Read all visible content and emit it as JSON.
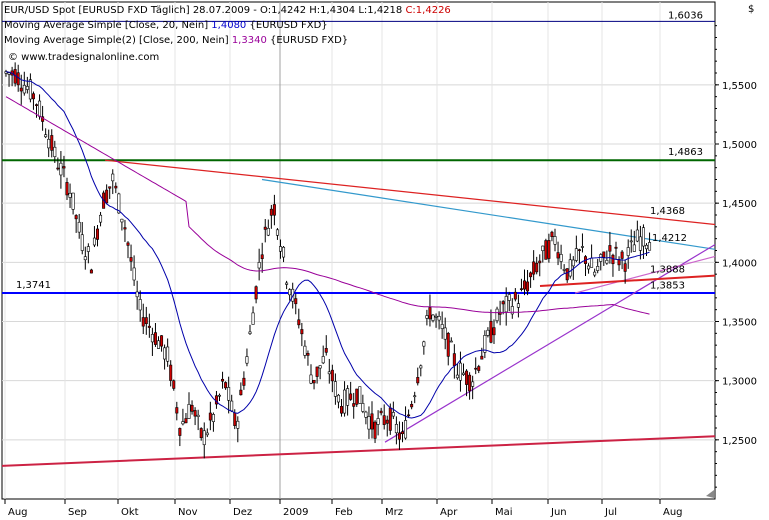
{
  "chart_data": {
    "type": "candlestick",
    "legend": [
      {
        "text": "EUR/USD Spot [EURUSD FXD  Täglich] 28.07.2009 - O:1,4242 H:1,4304 L:1,4218 ",
        "value": "C:1,4226",
        "value_color": "#cc0000"
      },
      {
        "text": "Moving Average Simple [Close, 20, Nein] ",
        "value": "1,4080",
        "value_color": "#0000cc",
        "suffix": " {EURUSD FXD}"
      },
      {
        "text": "Moving Average Simple(2) [Close, 200, Nein] ",
        "value": "1,3340",
        "value_color": "#990099",
        "suffix": " {EURUSD FXD}"
      }
    ],
    "watermark": "© www.tradesignalonline.com",
    "currency_label": "$",
    "ylim": [
      1.2,
      1.62
    ],
    "y_ticks": [
      "1,5500",
      "1,5000",
      "1,4500",
      "1,4000",
      "1,3500",
      "1,3000",
      "1,2500"
    ],
    "y_tick_values": [
      1.55,
      1.5,
      1.45,
      1.4,
      1.35,
      1.3,
      1.25
    ],
    "x_months": [
      "Aug",
      "Sep",
      "Okt",
      "Nov",
      "Dez",
      "2009",
      "Feb",
      "Mrz",
      "Apr",
      "Mai",
      "Jun",
      "Jul",
      "Aug"
    ],
    "price_labels": [
      {
        "text": "1,6036",
        "value": 1.6036,
        "color": "#000080"
      },
      {
        "text": "1,4863",
        "value": 1.4863,
        "color": "#006600"
      },
      {
        "text": "1,4368",
        "value": 1.4368,
        "color": "#cc0000"
      },
      {
        "text": "1,4212",
        "value": 1.4212,
        "color": "#3399cc"
      },
      {
        "text": "1,3888",
        "value": 1.3888,
        "color": "#cc0000"
      },
      {
        "text": "1,3853",
        "value": 1.3853,
        "color": "#cc0000"
      },
      {
        "text": "1,3741",
        "value": 1.3741,
        "color": "#0000cc"
      }
    ],
    "hlines": [
      {
        "value": 1.4863,
        "color": "#006600"
      },
      {
        "value": 1.3741,
        "color": "#0000ff"
      },
      {
        "value": 1.6036,
        "color": "#000080"
      }
    ],
    "anchors": [
      [
        "Aug",
        1.56
      ],
      [
        "Aug",
        1.54
      ],
      [
        "Aug",
        1.49
      ],
      [
        "Sep",
        1.46
      ],
      [
        "Sep",
        1.42
      ],
      [
        "Sep",
        1.4
      ],
      [
        "Sep",
        1.45
      ],
      [
        "Sep",
        1.47
      ],
      [
        "Okt",
        1.43
      ],
      [
        "Okt",
        1.36
      ],
      [
        "Okt",
        1.34
      ],
      [
        "Okt",
        1.32
      ],
      [
        "Nov",
        1.26
      ],
      [
        "Nov",
        1.28
      ],
      [
        "Nov",
        1.25
      ],
      [
        "Nov",
        1.27
      ],
      [
        "Nov",
        1.3
      ],
      [
        "Dez",
        1.26
      ],
      [
        "Dez",
        1.33
      ],
      [
        "Dez",
        1.41
      ],
      [
        "Dez",
        1.45
      ],
      [
        "2009",
        1.39
      ],
      [
        "2009",
        1.35
      ],
      [
        "2009",
        1.3
      ],
      [
        "2009",
        1.32
      ],
      [
        "Feb",
        1.28
      ],
      [
        "Feb",
        1.29
      ],
      [
        "Feb",
        1.26
      ],
      [
        "Mrz",
        1.27
      ],
      [
        "Mrz",
        1.25
      ],
      [
        "Mrz",
        1.3
      ],
      [
        "Mrz",
        1.36
      ],
      [
        "Apr",
        1.34
      ],
      [
        "Apr",
        1.31
      ],
      [
        "Apr",
        1.3
      ],
      [
        "Apr",
        1.33
      ],
      [
        "Mai",
        1.36
      ],
      [
        "Mai",
        1.37
      ],
      [
        "Mai",
        1.4
      ],
      [
        "Jun",
        1.42
      ],
      [
        "Jun",
        1.39
      ],
      [
        "Jun",
        1.41
      ],
      [
        "Jun",
        1.39
      ],
      [
        "Jul",
        1.41
      ],
      [
        "Jul",
        1.4
      ],
      [
        "Jul",
        1.42
      ],
      [
        "Jul",
        1.42
      ]
    ]
  }
}
